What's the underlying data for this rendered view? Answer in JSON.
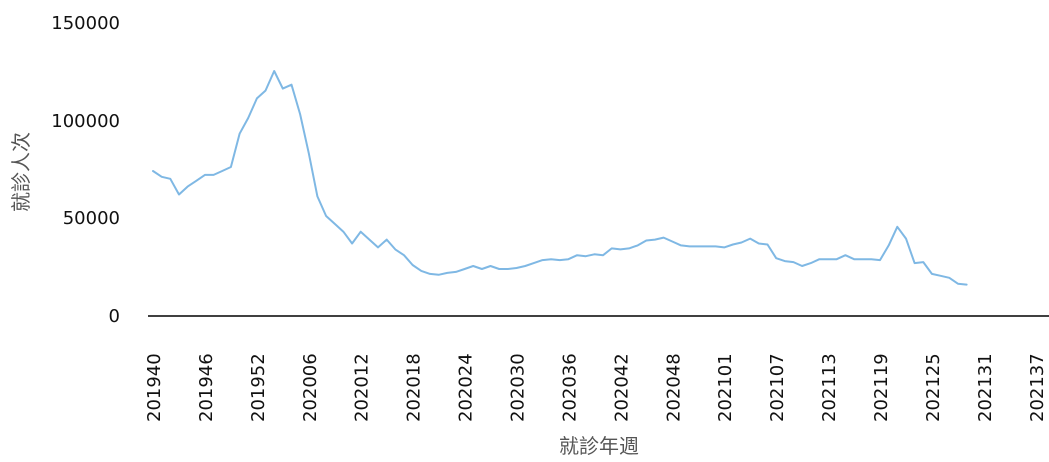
{
  "chart_data": {
    "type": "line",
    "title": "",
    "xlabel": "就診年週",
    "ylabel": "就診人次",
    "ylim": [
      0,
      150000
    ],
    "yticks": [
      "0",
      "50000",
      "100000",
      "150000"
    ],
    "xticks": [
      "201940",
      "201946",
      "201952",
      "202006",
      "202012",
      "202018",
      "202024",
      "202030",
      "202036",
      "202042",
      "202048",
      "202101",
      "202107",
      "202113",
      "202119",
      "202125",
      "202131",
      "202137"
    ],
    "grid": false,
    "line_color": "#7fb8e4",
    "axis_color": "#000000",
    "series": [
      {
        "values": [
          74000,
          71000,
          70000,
          62000,
          66000,
          69000,
          72000,
          72000,
          74000,
          76000,
          93000,
          101000,
          111000,
          115000,
          125000,
          116000,
          118000,
          103000,
          83000,
          61000,
          51000,
          47000,
          43000,
          37000,
          43000,
          39000,
          35000,
          39000,
          34000,
          31000,
          26000,
          23000,
          21500,
          21000,
          22000,
          22500,
          24000,
          25500,
          24000,
          25500,
          24000,
          24000,
          24500,
          25500,
          27000,
          28500,
          29000,
          28500,
          29000,
          31000,
          30500,
          31500,
          31000,
          34500,
          34000,
          34500,
          36000,
          38500,
          39000,
          40000,
          38000,
          36000,
          35500,
          35500,
          35500,
          35500,
          35000,
          36500,
          37500,
          39500,
          37000,
          36500,
          29500,
          28000,
          27500,
          25500,
          27000,
          29000,
          29000,
          29000,
          31000,
          29000,
          29000,
          29000,
          28500,
          36000,
          45500,
          39500,
          27000,
          27500,
          21500,
          20500,
          19500,
          16500,
          16000
        ]
      }
    ]
  }
}
